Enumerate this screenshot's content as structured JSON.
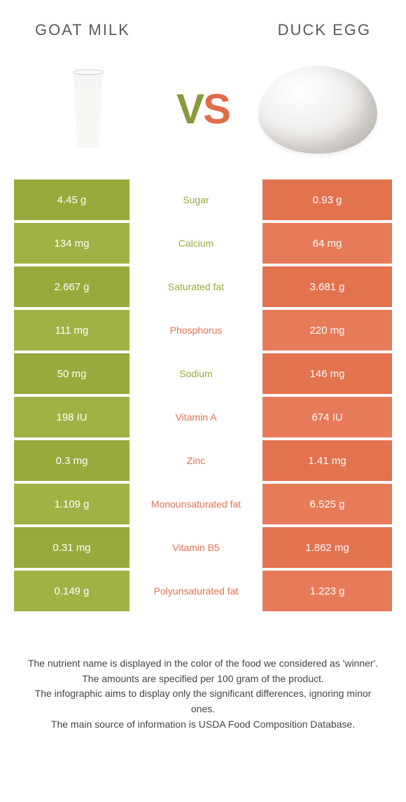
{
  "colors": {
    "left_food": "#97aa3c",
    "left_food_alt": "#9fb244",
    "right_food": "#e3724f",
    "right_food_alt": "#e77b59",
    "text": "#333333"
  },
  "header": {
    "left_title": "GOAT MILK",
    "right_title": "DUCK EGG",
    "vs_v": "V",
    "vs_s": "S"
  },
  "rows": [
    {
      "label": "Sugar",
      "left": "4.45 g",
      "right": "0.93 g",
      "winner": "left"
    },
    {
      "label": "Calcium",
      "left": "134 mg",
      "right": "64 mg",
      "winner": "left"
    },
    {
      "label": "Saturated fat",
      "left": "2.667 g",
      "right": "3.681 g",
      "winner": "left"
    },
    {
      "label": "Phosphorus",
      "left": "111 mg",
      "right": "220 mg",
      "winner": "right"
    },
    {
      "label": "Sodium",
      "left": "50 mg",
      "right": "146 mg",
      "winner": "left"
    },
    {
      "label": "Vitamin A",
      "left": "198 IU",
      "right": "674 IU",
      "winner": "right"
    },
    {
      "label": "Zinc",
      "left": "0.3 mg",
      "right": "1.41 mg",
      "winner": "right"
    },
    {
      "label": "Monounsaturated fat",
      "left": "1.109 g",
      "right": "6.525 g",
      "winner": "right"
    },
    {
      "label": "Vitamin B5",
      "left": "0.31 mg",
      "right": "1.862 mg",
      "winner": "right"
    },
    {
      "label": "Polyunsaturated fat",
      "left": "0.149 g",
      "right": "1.223 g",
      "winner": "right"
    }
  ],
  "footnotes": {
    "line1": "The nutrient name is displayed in the color of the food we considered as 'winner'.",
    "line2": "The amounts are specified per 100 gram of the product.",
    "line3": "The infographic aims to display only the significant differences, ignoring minor ones.",
    "line4": "The main source of information is USDA Food Composition Database."
  }
}
